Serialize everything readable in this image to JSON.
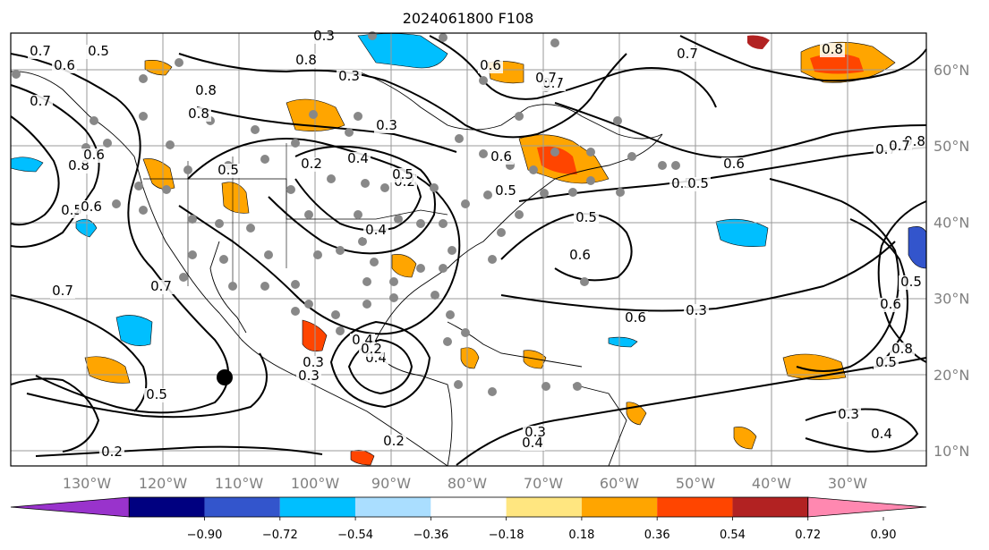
{
  "title": "2024061800 F108",
  "map": {
    "lon_labels": [
      "130°W",
      "120°W",
      "110°W",
      "100°W",
      "90°W",
      "80°W",
      "70°W",
      "60°W",
      "50°W",
      "40°W",
      "30°W"
    ],
    "lat_labels": [
      "60°N",
      "50°N",
      "40°N",
      "30°N",
      "20°N",
      "10°N"
    ],
    "lon_values": [
      -130,
      -120,
      -110,
      -100,
      -90,
      -80,
      -70,
      -60,
      -50,
      -40,
      -30
    ],
    "lat_values": [
      60,
      50,
      40,
      30,
      20,
      10
    ],
    "contour_labels": [
      "0.7",
      "0.6",
      "0.5",
      "0.8",
      "0.7",
      "0.8",
      "0.6",
      "0.8",
      "0.5",
      "0.5",
      "0.7",
      "0.7",
      "0.5",
      "0.2",
      "0.3",
      "0.3",
      "0.3",
      "0.4",
      "0.2",
      "0.4",
      "0.2",
      "0.3",
      "0.4",
      "0.4",
      "0.8",
      "0.6",
      "0.7",
      "0.6",
      "0.5",
      "0.5",
      "0.6",
      "0.7",
      "0.5",
      "0.3",
      "0.3",
      "0.4",
      "0.5",
      "0.6",
      "0.6",
      "0.7",
      "0.8",
      "0.5",
      "0.3",
      "0.4",
      "0.2",
      "0.3",
      "0.8",
      "0.7",
      "0.6",
      "0.5",
      "0.6",
      "0.5",
      "0.2",
      "0.8",
      "0.7"
    ]
  },
  "colorbar": {
    "ticks": [
      "−0.90",
      "−0.72",
      "−0.54",
      "−0.36",
      "−0.18",
      "0.18",
      "0.36",
      "0.54",
      "0.72",
      "0.90"
    ],
    "colors": [
      "#9933cc",
      "#000080",
      "#3355cc",
      "#00bfff",
      "#aadeff",
      "#ffffff",
      "#ffe680",
      "#ffa500",
      "#ff4500",
      "#b22222",
      "#ff88b0"
    ]
  }
}
